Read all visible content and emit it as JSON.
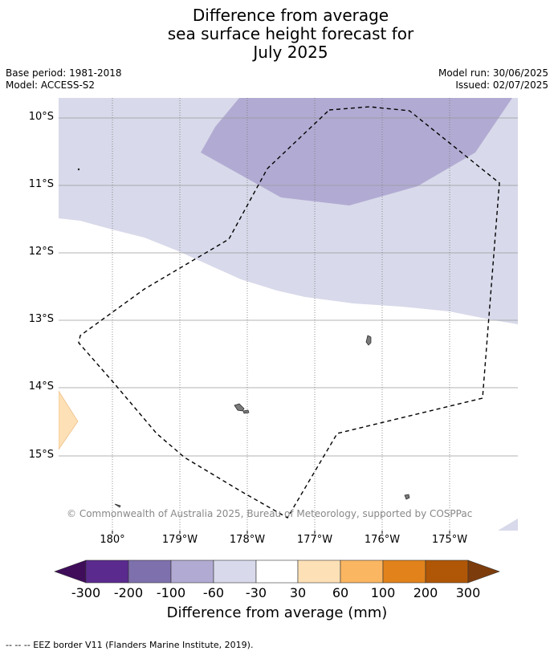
{
  "title": [
    "Difference from average",
    "sea surface height forecast for",
    "July 2025"
  ],
  "meta": {
    "base_period": "Base period: 1981-2018",
    "model": "Model: ACCESS-S2",
    "model_run": "Model run: 30/06/2025",
    "issued": "Issued: 02/07/2025"
  },
  "map": {
    "lat_labels": [
      "10°S",
      "11°S",
      "12°S",
      "13°S",
      "14°S",
      "15°S"
    ],
    "lon_labels": [
      "180°",
      "179°W",
      "178°W",
      "177°W",
      "176°W",
      "175°W"
    ],
    "copyright": "© Commonwealth of Australia 2025, Bureau of Meteorology, supported by COSPPac",
    "colors": {
      "ocean_neutral": "#ffffff",
      "neg_30_60": "#d8d9ea",
      "neg_60_100": "#b1abd3",
      "pos_30_60": "#fde0b5",
      "land": "#7a7a7a",
      "eez_border": "#000000"
    }
  },
  "colorbar": {
    "ticks": [
      "-300",
      "-200",
      "-100",
      "-60",
      "-30",
      "30",
      "60",
      "100",
      "200",
      "300"
    ],
    "colors": [
      "#3f0d5a",
      "#5a2a8e",
      "#7e70ad",
      "#b1abd3",
      "#d8d9ea",
      "#ffffff",
      "#fde0b5",
      "#fbb661",
      "#e1821b",
      "#b05707",
      "#7d3c0c"
    ],
    "label": "Difference from average (mm)"
  },
  "footer": "--  --  -- EEZ border V11 (Flanders Marine Institute, 2019)."
}
